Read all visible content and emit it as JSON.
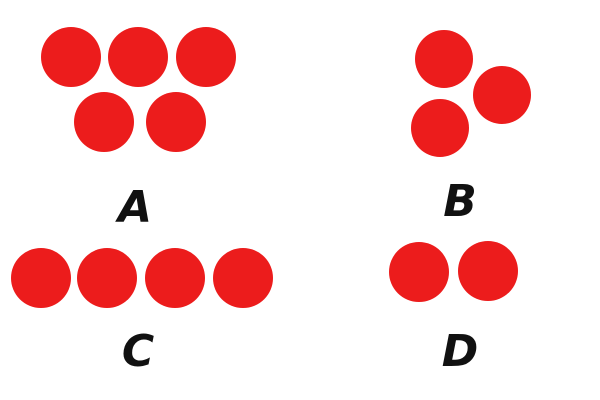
{
  "colors": {
    "dot": "#ec1c1c",
    "label": "#111111",
    "background": "#ffffff"
  },
  "groups": [
    {
      "label": "A",
      "dot_count": 5
    },
    {
      "label": "B",
      "dot_count": 3
    },
    {
      "label": "C",
      "dot_count": 4
    },
    {
      "label": "D",
      "dot_count": 2
    }
  ]
}
